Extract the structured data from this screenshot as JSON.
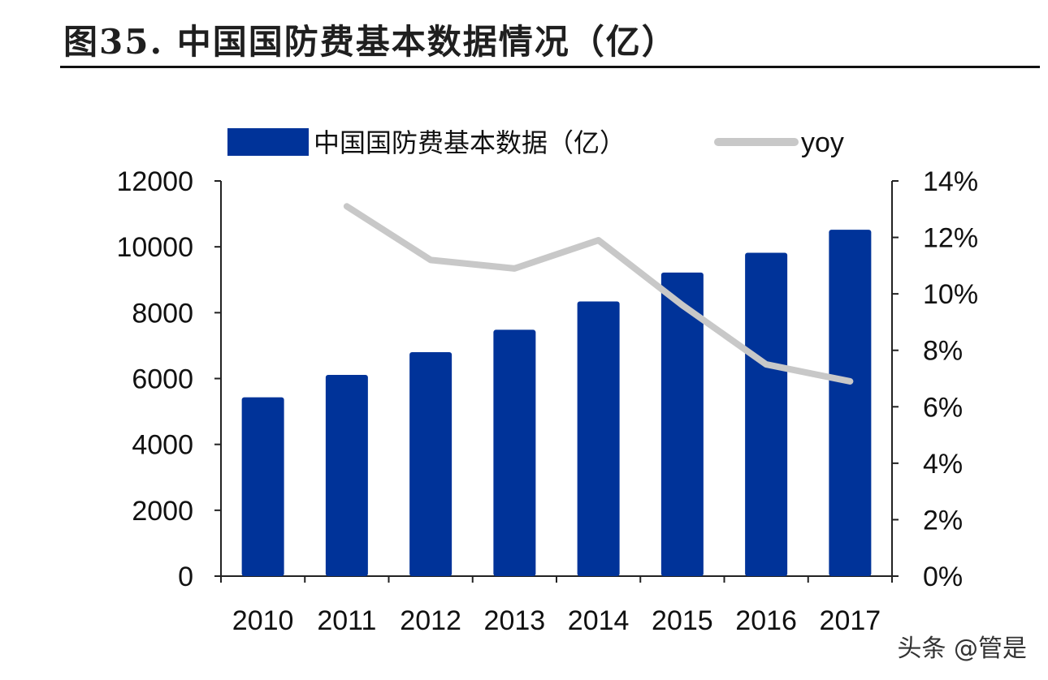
{
  "figure": {
    "title": "图35. 中国国防费基本数据情况（亿）"
  },
  "watermark": "头条 @管是",
  "chart_data": {
    "type": "bar",
    "categories": [
      "2010",
      "2011",
      "2012",
      "2013",
      "2014",
      "2015",
      "2016",
      "2017"
    ],
    "series": [
      {
        "name": "中国国防费基本数据（亿）",
        "type": "bar",
        "axis": "left",
        "color": "#003399",
        "values": [
          5430,
          6110,
          6800,
          7480,
          8340,
          9220,
          9820,
          10520
        ]
      },
      {
        "name": "yoy",
        "type": "line",
        "axis": "right",
        "color": "#c8c8c8",
        "values": [
          null,
          0.131,
          0.112,
          0.109,
          0.119,
          0.096,
          0.075,
          0.069
        ]
      }
    ],
    "y_left": {
      "ylim": [
        0,
        12000
      ],
      "ticks": [
        "0",
        "2000",
        "4000",
        "6000",
        "8000",
        "10000",
        "12000"
      ]
    },
    "y_right": {
      "ylim": [
        0,
        0.14
      ],
      "ticks": [
        "0%",
        "2%",
        "4%",
        "6%",
        "8%",
        "10%",
        "12%",
        "14%"
      ]
    },
    "legend": "top",
    "grid": false
  }
}
